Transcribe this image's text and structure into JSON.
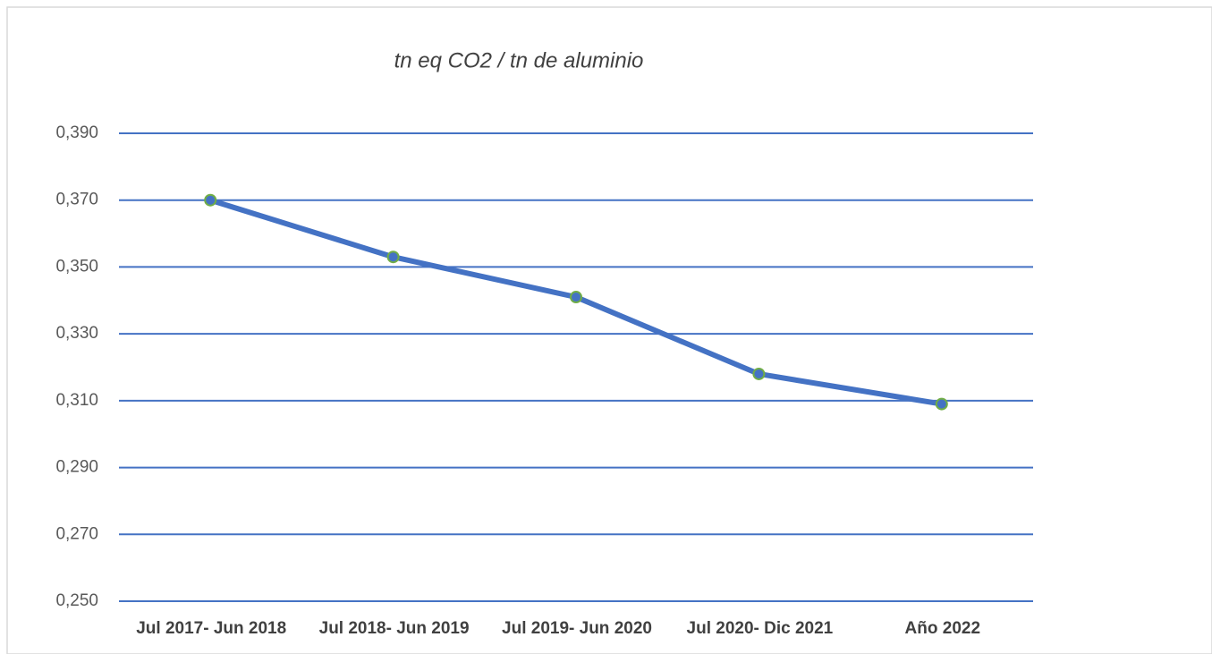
{
  "chart_data": {
    "type": "line",
    "title": "tn eq CO2 / tn de aluminio",
    "categories": [
      "Jul 2017- Jun 2018",
      "Jul 2018- Jun 2019",
      "Jul 2019- Jun 2020",
      "Jul 2020- Dic 2021",
      "Año 2022"
    ],
    "values": [
      0.37,
      0.353,
      0.341,
      0.318,
      0.309
    ],
    "color": "#4472c4",
    "marker_edge_color": "#70ad47",
    "grid_color": "#4472c4",
    "ylim": [
      0.25,
      0.39
    ],
    "yticks": [
      {
        "value": 0.25,
        "label": "0,250"
      },
      {
        "value": 0.27,
        "label": "0,270"
      },
      {
        "value": 0.29,
        "label": "0,290"
      },
      {
        "value": 0.31,
        "label": "0,310"
      },
      {
        "value": 0.33,
        "label": "0,330"
      },
      {
        "value": 0.35,
        "label": "0,350"
      },
      {
        "value": 0.37,
        "label": "0,370"
      },
      {
        "value": 0.39,
        "label": "0,390"
      }
    ],
    "grid": true
  }
}
